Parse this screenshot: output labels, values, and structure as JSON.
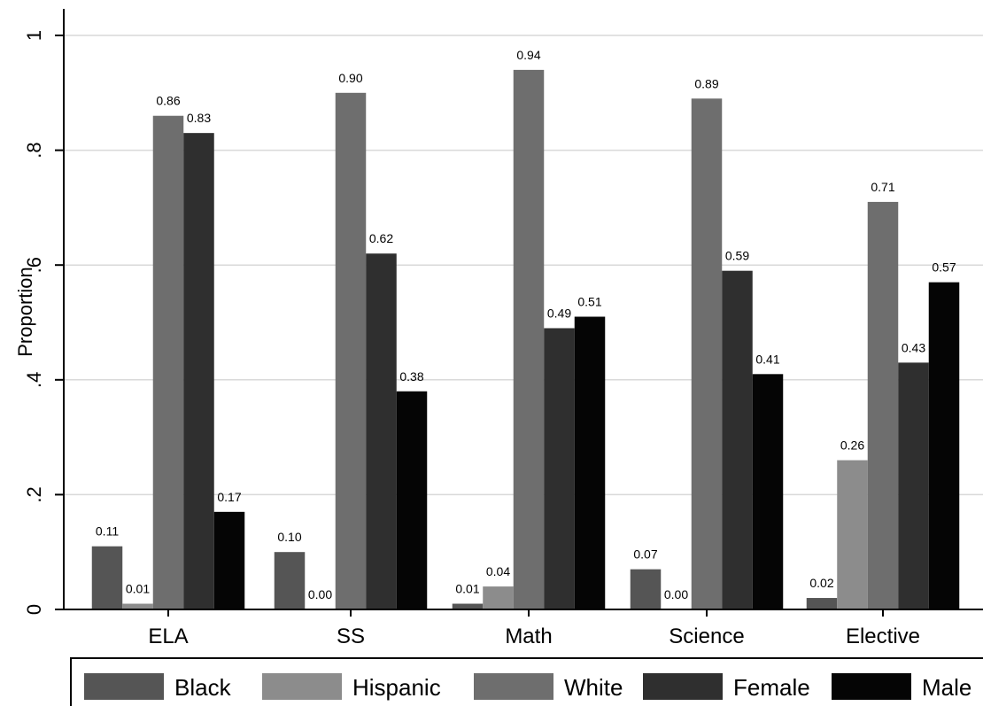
{
  "chart_data": {
    "type": "bar",
    "title": "",
    "xlabel": "",
    "ylabel": "Proportion",
    "ylim": [
      0,
      1
    ],
    "yticks": [
      0,
      0.2,
      0.4,
      0.6,
      0.8,
      1
    ],
    "ytick_labels": [
      "0",
      ".2",
      ".4",
      ".6",
      ".8",
      "1"
    ],
    "grid": true,
    "legend_position": "bottom",
    "categories": [
      "ELA",
      "SS",
      "Math",
      "Science",
      "Elective"
    ],
    "series": [
      {
        "name": "Black",
        "color": "#555555",
        "values": [
          0.11,
          0.1,
          0.01,
          0.07,
          0.02
        ],
        "labels": [
          "0.11",
          "0.10",
          "0.01",
          "0.07",
          "0.02"
        ]
      },
      {
        "name": "Hispanic",
        "color": "#8c8c8c",
        "values": [
          0.01,
          0.0,
          0.04,
          0.0,
          0.26
        ],
        "labels": [
          "0.01",
          "0.00",
          "0.04",
          "0.00",
          "0.26"
        ]
      },
      {
        "name": "White",
        "color": "#6e6e6e",
        "values": [
          0.86,
          0.9,
          0.94,
          0.89,
          0.71
        ],
        "labels": [
          "0.86",
          "0.90",
          "0.94",
          "0.89",
          "0.71"
        ]
      },
      {
        "name": "Female",
        "color": "#2f2f2f",
        "values": [
          0.83,
          0.62,
          0.49,
          0.59,
          0.43
        ],
        "labels": [
          "0.83",
          "0.62",
          "0.49",
          "0.59",
          "0.43"
        ]
      },
      {
        "name": "Male",
        "color": "#050505",
        "values": [
          0.17,
          0.38,
          0.51,
          0.41,
          0.57
        ],
        "labels": [
          "0.17",
          "0.38",
          "0.51",
          "0.41",
          "0.57"
        ]
      }
    ]
  }
}
